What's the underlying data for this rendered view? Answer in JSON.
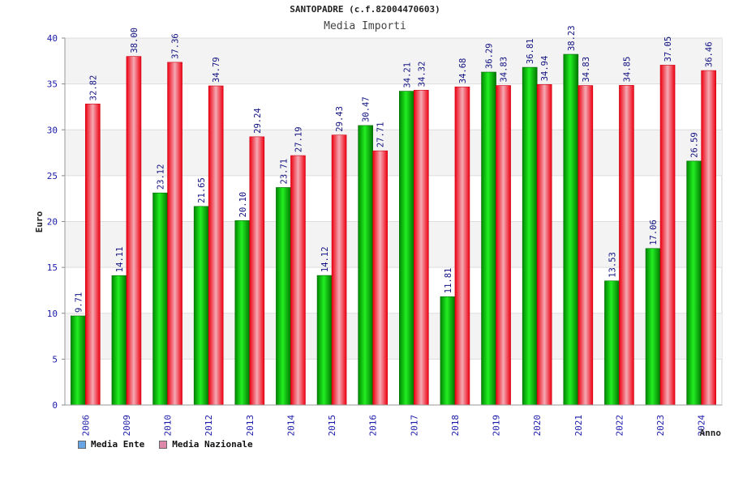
{
  "chart_data": {
    "type": "bar",
    "title": "SANTOPADRE (c.f.82004470603)",
    "subtitle": "Media Importi",
    "xlabel": "Anno",
    "ylabel": "Euro",
    "ylim": [
      0,
      40
    ],
    "yticks": [
      0,
      5,
      10,
      15,
      20,
      25,
      30,
      35,
      40
    ],
    "categories": [
      "2006",
      "2009",
      "2010",
      "2012",
      "2013",
      "2014",
      "2015",
      "2016",
      "2017",
      "2018",
      "2019",
      "2020",
      "2021",
      "2022",
      "2023",
      "2024"
    ],
    "series": [
      {
        "name": "Media Ente",
        "color": "#00aa00",
        "values": [
          9.71,
          14.11,
          23.12,
          21.65,
          20.1,
          23.71,
          14.12,
          30.47,
          34.21,
          11.81,
          36.29,
          36.81,
          38.23,
          13.53,
          17.06,
          26.59
        ],
        "labels": [
          "9.71",
          "14.11",
          "23.12",
          "21.65",
          "20.10",
          "23.71",
          "14.12",
          "30.47",
          "34.21",
          "11.81",
          "36.29",
          "36.81",
          "38.23",
          "13.53",
          "17.06",
          "26.59"
        ]
      },
      {
        "name": "Media Nazionale",
        "color": "#ee1122",
        "values": [
          32.82,
          38.0,
          37.36,
          34.79,
          29.24,
          27.19,
          29.43,
          27.71,
          34.32,
          34.68,
          34.83,
          34.94,
          34.83,
          34.85,
          37.05,
          36.46
        ],
        "labels": [
          "32.82",
          "38.00",
          "37.36",
          "34.79",
          "29.24",
          "27.19",
          "29.43",
          "27.71",
          "34.32",
          "34.68",
          "34.83",
          "34.94",
          "34.83",
          "34.85",
          "37.05",
          "36.46"
        ]
      }
    ],
    "legend": [
      {
        "label": "Media Ente",
        "swatch": "#6aa6e6"
      },
      {
        "label": "Media Nazionale",
        "swatch": "#dd88aa"
      }
    ]
  }
}
